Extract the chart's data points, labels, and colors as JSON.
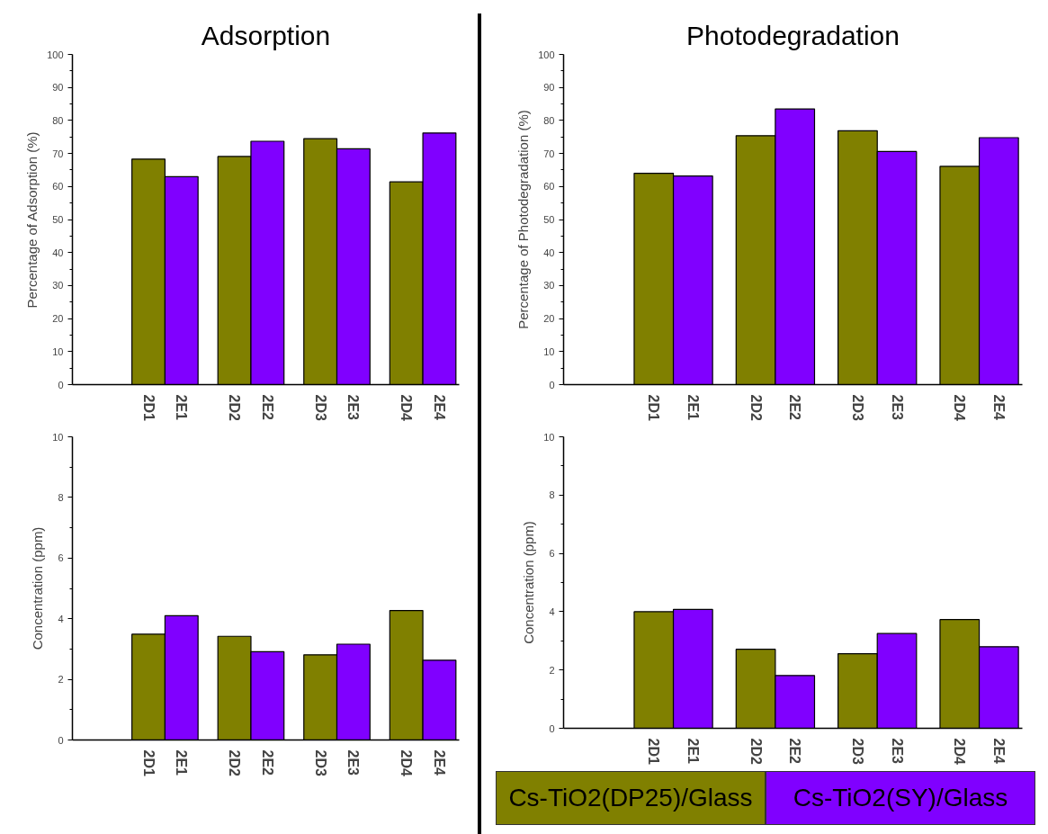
{
  "chart_data": [
    {
      "type": "bar",
      "title": "Adsorption",
      "ylabel": "Percentage of Adsorption (%)",
      "categories": [
        "2D1",
        "2E1",
        "2D2",
        "2E2",
        "2D3",
        "2E3",
        "2D4",
        "2E4"
      ],
      "ylim": [
        0,
        100
      ],
      "yticks": [
        0,
        10,
        20,
        30,
        40,
        50,
        60,
        70,
        80,
        90,
        100
      ],
      "grid": false,
      "series": [
        {
          "color": "#808000",
          "values": [
            68.3,
            null,
            69.1,
            null,
            74.5,
            null,
            61.4,
            null
          ]
        },
        {
          "color": "#8000ff",
          "values": [
            null,
            63.0,
            null,
            73.7,
            null,
            71.4,
            null,
            76.2
          ]
        }
      ]
    },
    {
      "type": "bar",
      "title": "Photodegradation",
      "ylabel": "Percentage of Photodegradation (%)",
      "categories": [
        "2D1",
        "2E1",
        "2D2",
        "2E2",
        "2D3",
        "2E3",
        "2D4",
        "2E4"
      ],
      "ylim": [
        0,
        100
      ],
      "yticks": [
        0,
        10,
        20,
        30,
        40,
        50,
        60,
        70,
        80,
        90,
        100
      ],
      "grid": false,
      "series": [
        {
          "color": "#808000",
          "values": [
            64.0,
            null,
            75.4,
            null,
            76.9,
            null,
            66.1,
            null
          ]
        },
        {
          "color": "#8000ff",
          "values": [
            null,
            63.2,
            null,
            83.5,
            null,
            70.6,
            null,
            74.8
          ]
        }
      ]
    },
    {
      "type": "bar",
      "ylabel": "Concentration (ppm)",
      "categories": [
        "2D1",
        "2E1",
        "2D2",
        "2E2",
        "2D3",
        "2E3",
        "2D4",
        "2E4"
      ],
      "ylim": [
        0,
        10
      ],
      "yticks": [
        0,
        2,
        4,
        6,
        8,
        10
      ],
      "grid": false,
      "series": [
        {
          "color": "#808000",
          "values": [
            3.49,
            null,
            3.42,
            null,
            2.81,
            null,
            4.27,
            null
          ]
        },
        {
          "color": "#8000ff",
          "values": [
            null,
            4.1,
            null,
            2.91,
            null,
            3.16,
            null,
            2.63
          ]
        }
      ]
    },
    {
      "type": "bar",
      "ylabel": "Concentration (ppm)",
      "categories": [
        "2D1",
        "2E1",
        "2D2",
        "2E2",
        "2D3",
        "2E3",
        "2D4",
        "2E4"
      ],
      "ylim": [
        0,
        10
      ],
      "yticks": [
        0,
        2,
        4,
        6,
        8,
        10
      ],
      "grid": false,
      "series": [
        {
          "name": "Cs-TiO2(DP25)/Glass",
          "color": "#808000",
          "values": [
            4.0,
            null,
            2.71,
            null,
            2.56,
            null,
            3.73,
            null
          ]
        },
        {
          "name": "Cs-TiO2(SY)/Glass",
          "color": "#8000ff",
          "values": [
            null,
            4.08,
            null,
            1.81,
            null,
            3.25,
            null,
            2.8
          ]
        }
      ]
    }
  ]
}
